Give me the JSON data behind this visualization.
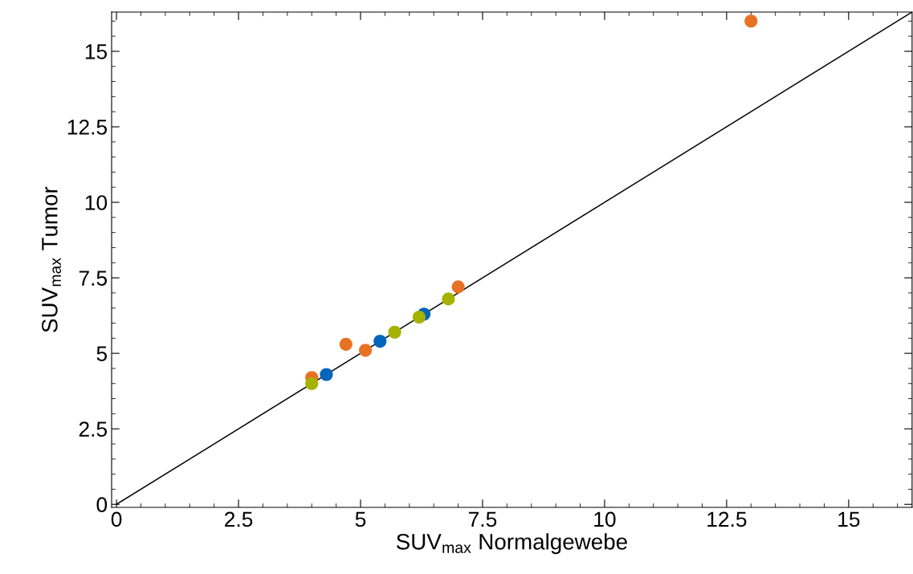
{
  "chart_data": {
    "type": "scatter",
    "xlabel": "SUV$_{max}$ Normalgewebe",
    "ylabel": "SUV$_{max}$ Tumor",
    "xlim": [
      -0.1,
      16.3
    ],
    "ylim": [
      -0.1,
      16.3
    ],
    "xticks": [
      0,
      2.5,
      5,
      7.5,
      10,
      12.5,
      15
    ],
    "yticks": [
      0,
      2.5,
      5,
      7.5,
      10,
      12.5,
      15
    ],
    "grid": false,
    "marker": "circle",
    "series": [
      {
        "type": "line",
        "color": "#000000",
        "x": [
          0,
          16.3
        ],
        "values": [
          0,
          16.3
        ],
        "marker": "none",
        "line_style": "solid"
      },
      {
        "color": "#e87224",
        "x": [
          4.0,
          4.7,
          5.1,
          7.0,
          13.0
        ],
        "values": [
          4.2,
          5.3,
          5.1,
          7.2,
          16.0
        ]
      },
      {
        "color": "#0066bb",
        "x": [
          4.3,
          5.4,
          6.3
        ],
        "values": [
          4.3,
          5.4,
          6.3
        ]
      },
      {
        "color": "#a6b200",
        "x": [
          4.0,
          5.7,
          6.2,
          6.8
        ],
        "values": [
          4.0,
          5.7,
          6.2,
          6.8
        ]
      }
    ]
  }
}
